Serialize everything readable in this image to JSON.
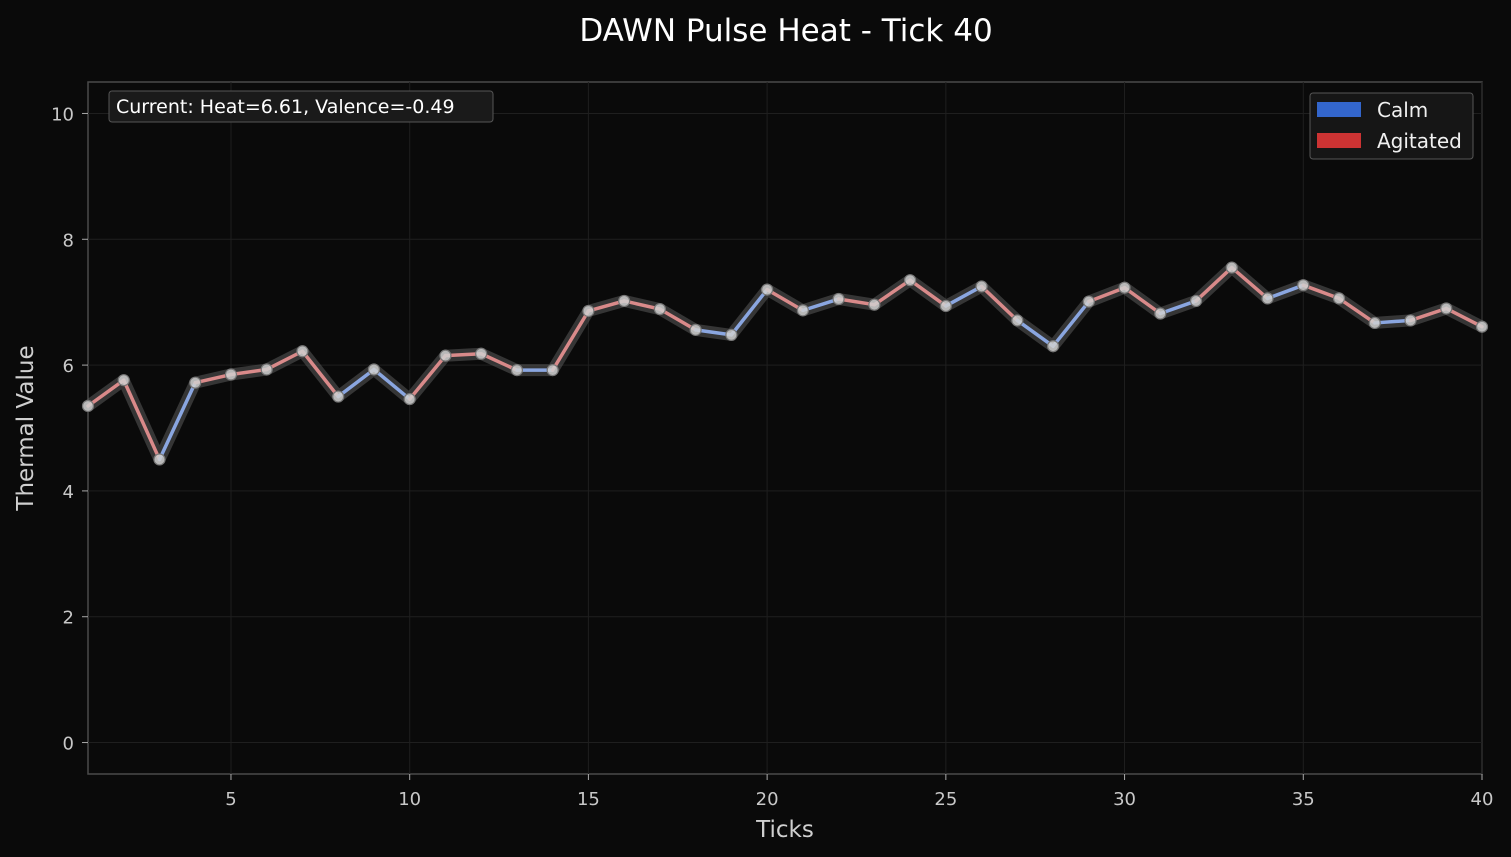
{
  "chart_data": {
    "type": "line",
    "title": "DAWN Pulse Heat - Tick 40",
    "xlabel": "Ticks",
    "ylabel": "Thermal Value",
    "xlim": [
      1,
      40
    ],
    "ylim": [
      -0.5,
      10.5
    ],
    "xticks": [
      5,
      10,
      15,
      20,
      25,
      30,
      35,
      40
    ],
    "yticks": [
      0,
      2,
      4,
      6,
      8,
      10
    ],
    "grid": true,
    "legend_position": "top-right",
    "annotation": "Current: Heat=6.61, Valence=-0.49",
    "legend": [
      {
        "label": "Calm",
        "color": "#3366cc"
      },
      {
        "label": "Agitated",
        "color": "#cc3333"
      }
    ],
    "series": [
      {
        "x": [
          1,
          2,
          3,
          4,
          5,
          6,
          7,
          8,
          9,
          10,
          11,
          12,
          13,
          14,
          15,
          16,
          17,
          18,
          19,
          20,
          21,
          22,
          23,
          24,
          25,
          26,
          27,
          28,
          29,
          30,
          31,
          32,
          33,
          34,
          35,
          36,
          37,
          38,
          39,
          40
        ],
        "values": [
          5.35,
          5.76,
          4.5,
          5.72,
          5.85,
          5.93,
          6.22,
          5.5,
          5.93,
          5.46,
          6.15,
          6.18,
          5.92,
          5.92,
          6.86,
          7.02,
          6.89,
          6.56,
          6.48,
          7.2,
          6.87,
          7.05,
          6.96,
          7.35,
          6.94,
          7.25,
          6.71,
          6.3,
          7.01,
          7.23,
          6.82,
          7.02,
          7.55,
          7.06,
          7.27,
          7.06,
          6.67,
          6.71,
          6.9,
          6.61
        ],
        "state": [
          "agitated",
          "agitated",
          "calm",
          "agitated",
          "agitated",
          "agitated",
          "agitated",
          "calm",
          "calm",
          "agitated",
          "agitated",
          "agitated",
          "calm",
          "agitated",
          "agitated",
          "agitated",
          "agitated",
          "calm",
          "calm",
          "agitated",
          "calm",
          "agitated",
          "agitated",
          "agitated",
          "calm",
          "agitated",
          "calm",
          "calm",
          "agitated",
          "agitated",
          "calm",
          "agitated",
          "agitated",
          "calm",
          "agitated",
          "agitated",
          "calm",
          "agitated",
          "agitated",
          "agitated"
        ]
      }
    ]
  }
}
